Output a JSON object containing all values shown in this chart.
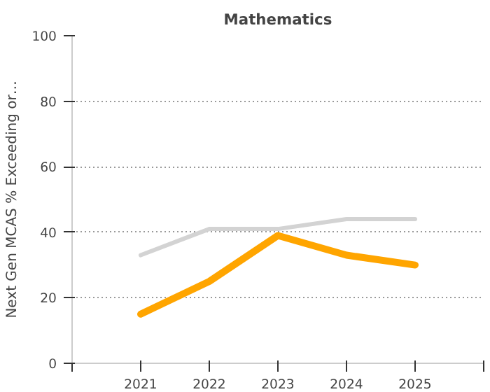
{
  "chart_data": {
    "type": "line",
    "title": "Mathematics",
    "ylabel": "Next Gen MCAS % Exceeding or…",
    "x": [
      2021,
      2022,
      2023,
      2024,
      2025
    ],
    "series": [
      {
        "color": "#d3d3d3",
        "values": [
          33,
          41,
          41,
          44,
          44
        ]
      },
      {
        "color": "#ffa500",
        "values": [
          15,
          25,
          39,
          33,
          30
        ]
      }
    ],
    "xlim": [
      2020,
      2026
    ],
    "xticks": [
      {
        "value": 2020,
        "label": null
      },
      2021,
      2022,
      2023,
      2024,
      2025,
      {
        "value": 2026,
        "label": null
      }
    ],
    "ylim": [
      0,
      100
    ],
    "yticks": [
      0,
      20,
      40,
      60,
      80,
      100
    ],
    "grid": "y",
    "line_style": "solid",
    "marker": "none"
  }
}
